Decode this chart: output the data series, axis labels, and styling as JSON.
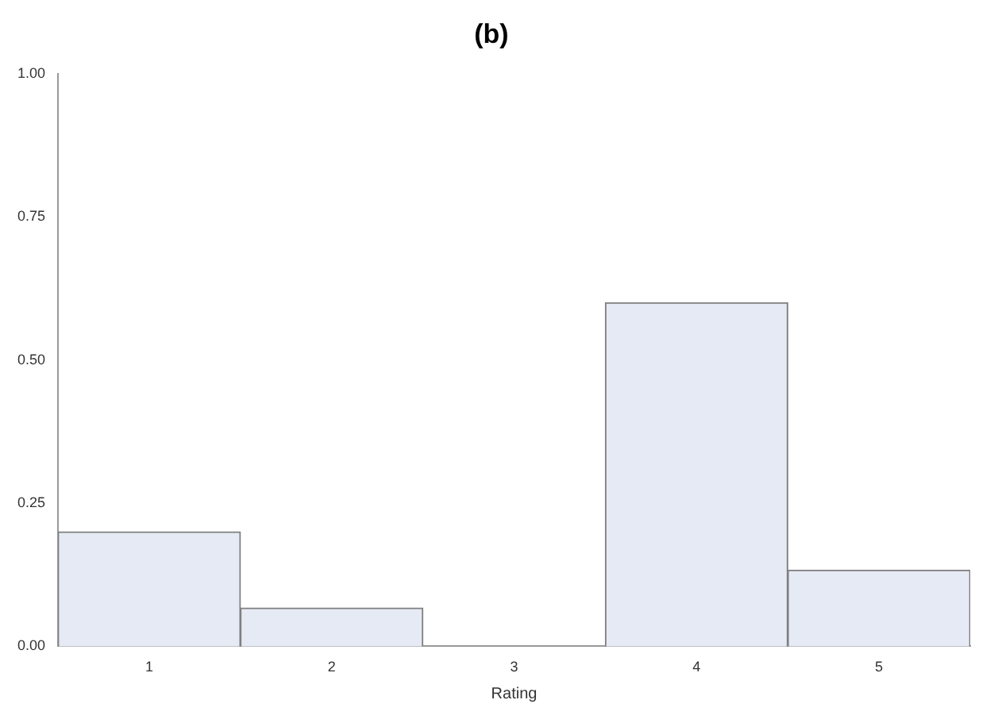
{
  "chart_data": {
    "type": "bar",
    "title": "(b)",
    "xlabel": "Rating",
    "categories": [
      "1",
      "2",
      "3",
      "4",
      "5"
    ],
    "values": [
      0.2,
      0.067,
      0,
      0.6,
      0.133
    ],
    "color": "#e6eaf4",
    "ylim": [
      0,
      1
    ],
    "yticks": [
      {
        "value": 0,
        "label": "0.00"
      },
      {
        "value": 0.25,
        "label": "0.25"
      },
      {
        "value": 0.5,
        "label": "0.50"
      },
      {
        "value": 0.75,
        "label": "0.75"
      },
      {
        "value": 1,
        "label": "1.00"
      }
    ],
    "grid": false
  }
}
